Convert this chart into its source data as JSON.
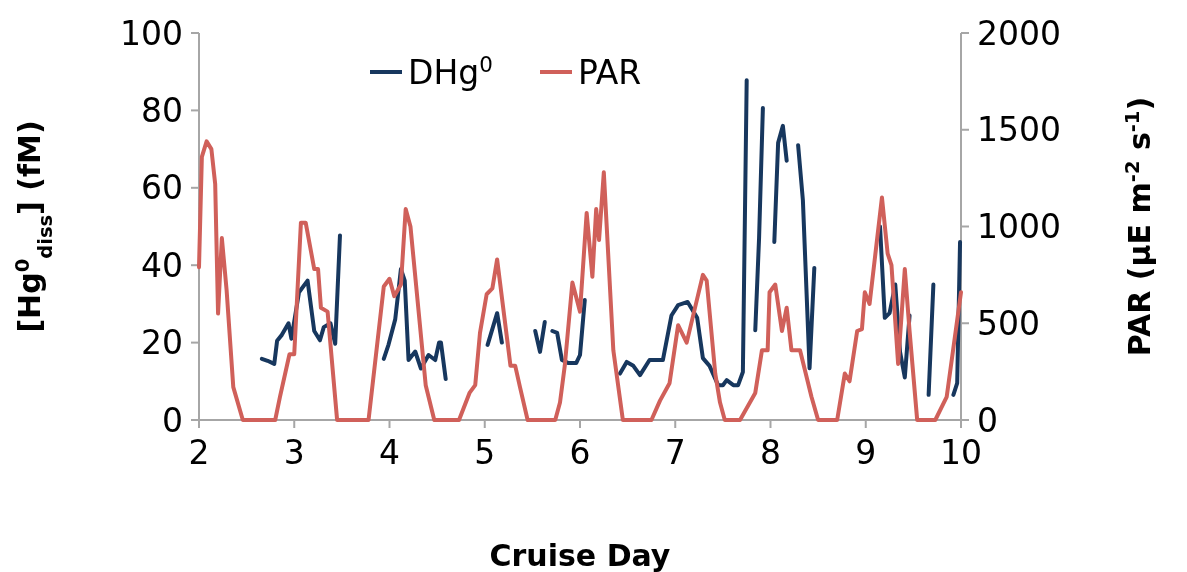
{
  "chart_data": {
    "type": "line",
    "xlabel": "Cruise Day",
    "ylabel": "[Hg$^{0}$$_{diss}$] (fM)",
    "y2label": "PAR (µE m$^{-2}$ s$^{-1}$)",
    "xlim": [
      2,
      10
    ],
    "xticks": [
      2,
      3,
      4,
      5,
      6,
      7,
      8,
      9,
      10
    ],
    "ylim": [
      0,
      100
    ],
    "yticks": [
      0,
      20,
      40,
      60,
      80,
      100
    ],
    "y2lim": [
      0,
      2000
    ],
    "y2ticks": [
      0,
      500,
      1000,
      1500,
      2000
    ],
    "legend": "top",
    "grid": false,
    "line_style": "solid",
    "marker": "none",
    "series": [
      {
        "name": "DHg$^{0}$",
        "color": "#17375e",
        "x": [
          2.66,
          2.72,
          2.79,
          2.82,
          2.87,
          2.94,
          2.97,
          3.05,
          3.14,
          3.21,
          3.27,
          3.31,
          3.38,
          3.43,
          3.48,
          3.7,
          3.94,
          3.99,
          4.06,
          4.12,
          4.16,
          4.2,
          4.27,
          4.33,
          4.41,
          4.48,
          4.52,
          4.54,
          4.59,
          4.8,
          5.03,
          5.13,
          5.18,
          5.4,
          5.53,
          5.58,
          5.63,
          5.67,
          5.71,
          5.76,
          5.81,
          5.88,
          5.96,
          6.0,
          6.05,
          6.3,
          6.42,
          6.49,
          6.56,
          6.63,
          6.73,
          6.87,
          6.96,
          7.03,
          7.13,
          7.23,
          7.29,
          7.36,
          7.45,
          7.5,
          7.54,
          7.61,
          7.66,
          7.71,
          7.75,
          7.8,
          7.84,
          7.88,
          7.92,
          7.98,
          8.04,
          8.08,
          8.13,
          8.17,
          8.23,
          8.29,
          8.34,
          8.41,
          8.46,
          8.8,
          9.15,
          9.2,
          9.25,
          9.31,
          9.36,
          9.41,
          9.46,
          9.56,
          9.66,
          9.71,
          9.82,
          9.92,
          9.96,
          9.99
        ],
        "values": [
          15.8,
          15.3,
          14.5,
          20.5,
          22,
          25,
          21,
          33,
          36,
          23,
          20.6,
          24,
          25,
          19.7,
          47.7,
          null,
          15.8,
          19.5,
          26,
          39,
          36,
          15.5,
          17.7,
          13.3,
          16.8,
          15.5,
          20,
          20,
          10.6,
          null,
          19.4,
          27.6,
          20,
          null,
          23,
          17.6,
          25.3,
          null,
          23,
          22.5,
          15.5,
          14.7,
          14.7,
          16.8,
          31,
          null,
          12,
          15,
          14,
          11.6,
          15.5,
          15.5,
          27,
          29.7,
          30.5,
          26.4,
          16,
          14,
          9,
          9,
          10.3,
          9,
          9,
          12.4,
          87.8,
          null,
          23.2,
          47,
          80.6,
          null,
          46,
          71.6,
          76,
          67,
          null,
          71,
          56.8,
          13.4,
          39.3,
          null,
          50,
          26.4,
          27.6,
          35,
          17.6,
          11,
          27,
          null,
          6.5,
          35,
          null,
          6.5,
          9.5,
          46
        ]
      },
      {
        "name": "PAR",
        "color": "#d0605a",
        "axis": "y2",
        "x": [
          2.0,
          2.03,
          2.08,
          2.13,
          2.17,
          2.2,
          2.24,
          2.29,
          2.36,
          2.46,
          2.8,
          2.85,
          2.95,
          3.0,
          3.07,
          3.12,
          3.21,
          3.25,
          3.28,
          3.35,
          3.45,
          3.78,
          3.94,
          4.0,
          4.05,
          4.12,
          4.17,
          4.22,
          4.38,
          4.47,
          4.73,
          4.84,
          4.9,
          4.95,
          5.02,
          5.08,
          5.13,
          5.27,
          5.32,
          5.37,
          5.45,
          5.74,
          5.79,
          5.84,
          5.92,
          6.0,
          6.07,
          6.13,
          6.17,
          6.2,
          6.25,
          6.35,
          6.45,
          6.75,
          6.84,
          6.94,
          7.03,
          7.12,
          7.29,
          7.33,
          7.42,
          7.47,
          7.52,
          7.68,
          7.84,
          7.91,
          7.97,
          7.99,
          8.05,
          8.12,
          8.17,
          8.22,
          8.31,
          8.43,
          8.5,
          8.7,
          8.78,
          8.83,
          8.91,
          8.96,
          8.99,
          9.04,
          9.17,
          9.23,
          9.27,
          9.34,
          9.41,
          9.46,
          9.54,
          9.73,
          9.85,
          10.0
        ],
        "values": [
          790,
          1360,
          1440,
          1400,
          1220,
          550,
          940,
          670,
          170,
          0,
          0,
          120,
          340,
          340,
          1020,
          1020,
          780,
          780,
          580,
          560,
          0,
          0,
          690,
          730,
          640,
          700,
          1090,
          1000,
          180,
          0,
          0,
          140,
          180,
          450,
          650,
          680,
          830,
          280,
          280,
          170,
          0,
          0,
          90,
          280,
          710,
          560,
          1070,
          740,
          1090,
          930,
          1280,
          360,
          0,
          0,
          100,
          190,
          490,
          400,
          750,
          720,
          240,
          90,
          0,
          0,
          140,
          360,
          360,
          660,
          700,
          460,
          580,
          360,
          360,
          120,
          0,
          0,
          240,
          200,
          460,
          470,
          660,
          600,
          1150,
          860,
          800,
          290,
          780,
          460,
          0,
          0,
          120,
          660
        ]
      }
    ]
  }
}
